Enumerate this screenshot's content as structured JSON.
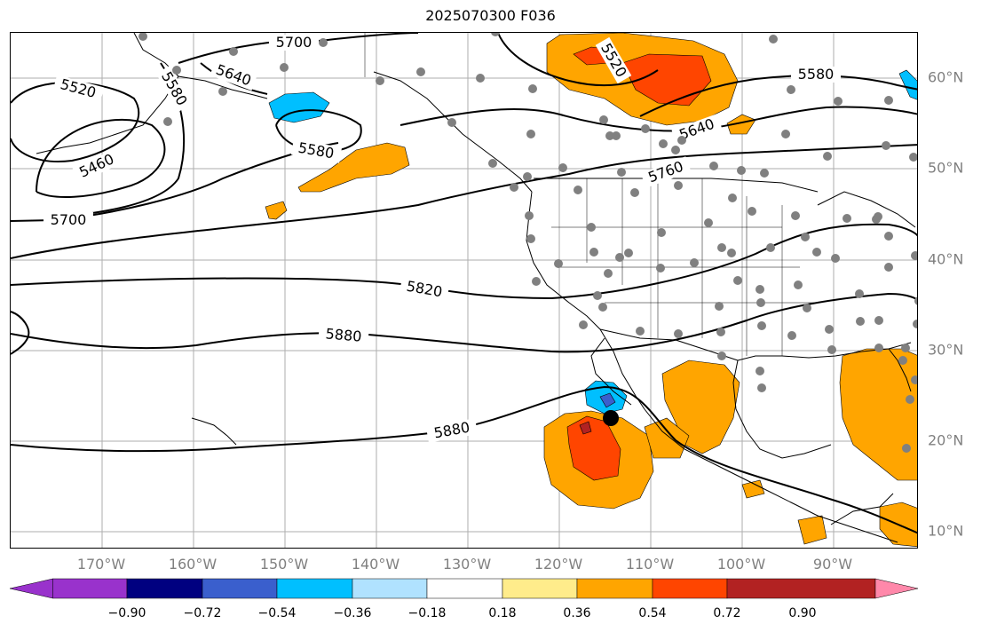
{
  "title": "2025070300 F036",
  "map": {
    "lon_labels": [
      "170°W",
      "160°W",
      "150°W",
      "140°W",
      "130°W",
      "120°W",
      "110°W",
      "100°W",
      "90°W"
    ],
    "lat_labels": [
      "60°N",
      "50°N",
      "40°N",
      "30°N",
      "20°N",
      "10°N"
    ],
    "contour_labels": [
      "5700",
      "5640",
      "5520",
      "5580",
      "5460",
      "5700",
      "5580",
      "5820",
      "5880",
      "5880",
      "5520",
      "5640",
      "5760",
      "5580"
    ],
    "colors": {
      "contour": "#000000",
      "land_outline": "#000000",
      "grid": "#999999",
      "station": "#808080",
      "storm_marker": "#000000"
    }
  },
  "colorbar": {
    "tick_labels": [
      "−0.90",
      "−0.72",
      "−0.54",
      "−0.36",
      "−0.18",
      "0.18",
      "0.36",
      "0.54",
      "0.72",
      "0.90"
    ],
    "colors": [
      "#9932cc",
      "#000080",
      "#3a5fcd",
      "#00bfff",
      "#b0e2ff",
      "#ffffff",
      "#ffec8b",
      "#ffa500",
      "#ff4500",
      "#b22222",
      "#ff88aa"
    ]
  }
}
